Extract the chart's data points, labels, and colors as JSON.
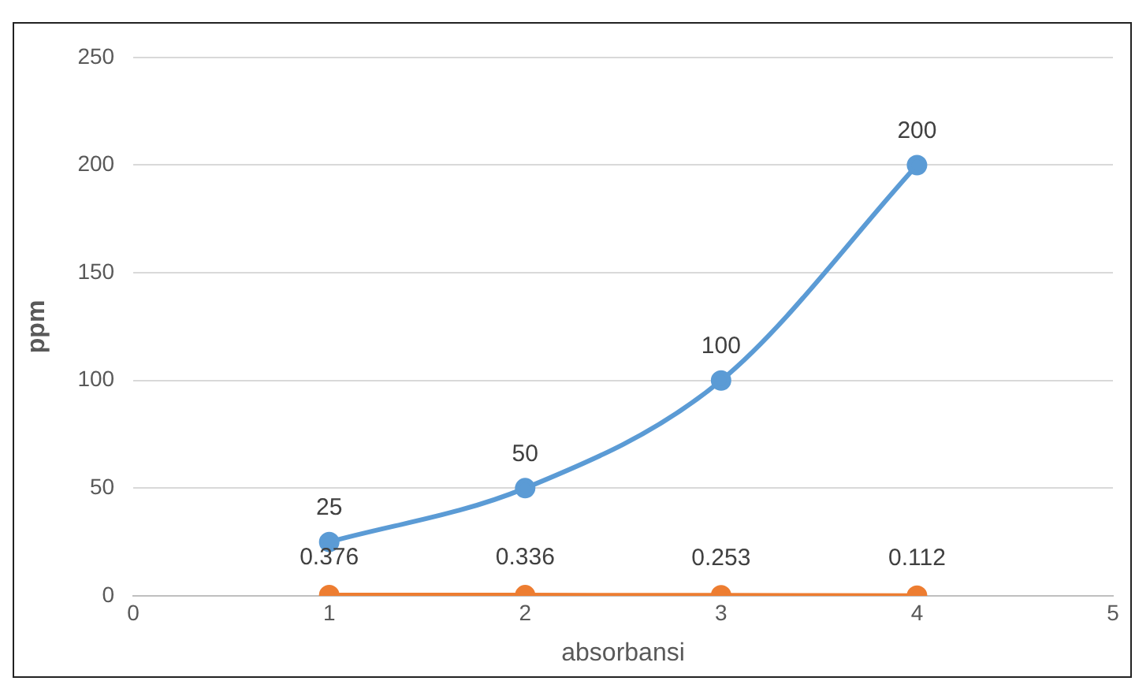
{
  "chart_data": {
    "type": "line",
    "xlabel": "absorbansi",
    "ylabel": "ppm",
    "x": [
      1,
      2,
      3,
      4
    ],
    "series": [
      {
        "color": "#5b9bd5",
        "values": [
          25,
          50,
          100,
          200
        ]
      },
      {
        "color": "#ed7d31",
        "values": [
          0.376,
          0.336,
          0.253,
          0.112
        ]
      }
    ],
    "xlim": [
      0,
      5
    ],
    "xticks": [
      0,
      1,
      2,
      3,
      4,
      5
    ],
    "ylim": [
      0,
      250
    ],
    "yticks": [
      0,
      50,
      100,
      150,
      200,
      250
    ],
    "grid": "y",
    "legend": false,
    "marker": "circle",
    "line_style": "solid",
    "data_labels": true
  }
}
